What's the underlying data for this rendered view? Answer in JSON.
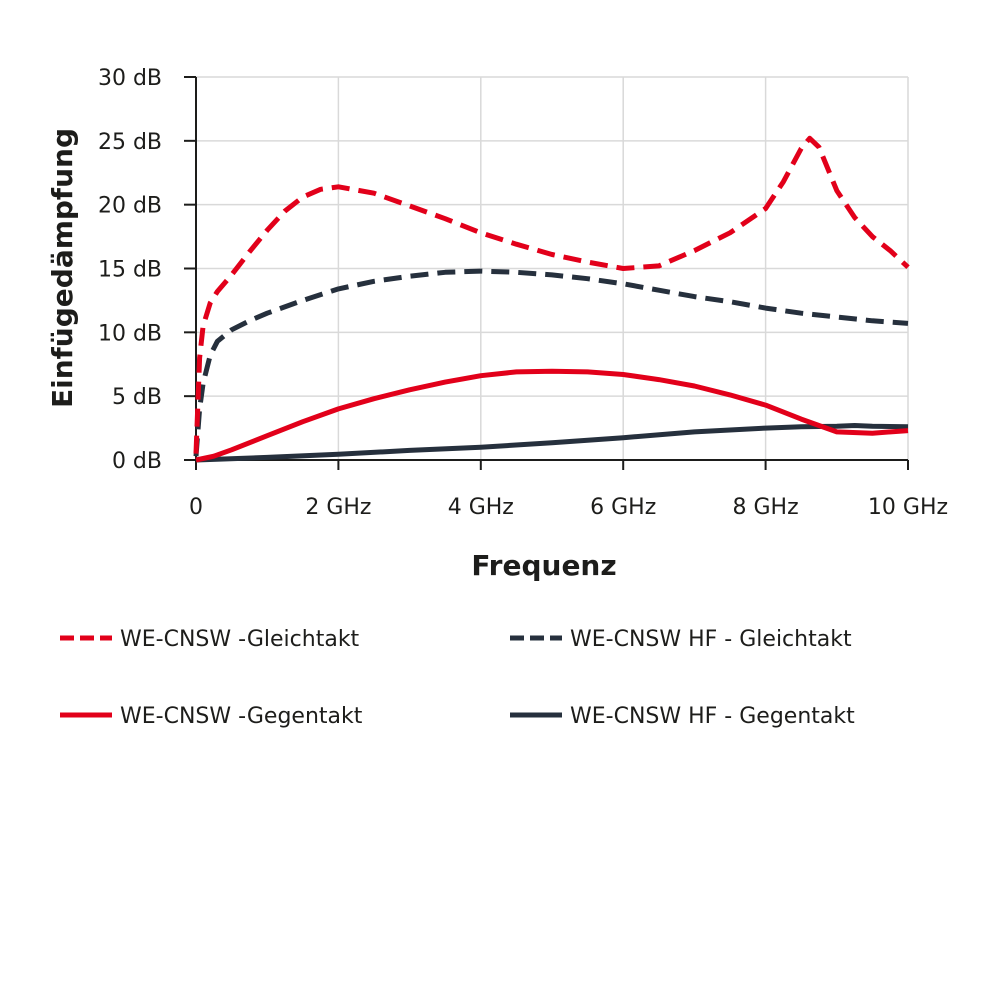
{
  "chart_data": {
    "type": "line",
    "title": "",
    "xlabel": "Frequenz",
    "ylabel": "Einfügedämpfung",
    "xlim": [
      0,
      10
    ],
    "ylim": [
      0,
      30
    ],
    "x_unit": "GHz",
    "y_unit": "dB",
    "x_ticks": [
      0,
      2,
      4,
      6,
      8,
      10
    ],
    "x_tick_labels": [
      "0",
      "2 GHz",
      "4 GHz",
      "6 GHz",
      "8 GHz",
      "10 GHz"
    ],
    "y_ticks": [
      0,
      5,
      10,
      15,
      20,
      25,
      30
    ],
    "y_tick_labels": [
      "0 dB",
      "5 dB",
      "10 dB",
      "15 dB",
      "20 dB",
      "25 dB",
      "30 dB"
    ],
    "grid": true,
    "legend_position": "bottom",
    "series": [
      {
        "name": "WE-CNSW -Gleichtakt",
        "color": "#e2001a",
        "dash": true,
        "x": [
          0,
          0.05,
          0.1,
          0.2,
          0.3,
          0.5,
          0.75,
          1.0,
          1.25,
          1.5,
          1.75,
          2.0,
          2.5,
          3.0,
          3.5,
          4.0,
          4.5,
          5.0,
          5.5,
          6.0,
          6.5,
          7.0,
          7.5,
          8.0,
          8.25,
          8.5,
          8.62,
          8.75,
          9.0,
          9.25,
          9.5,
          9.75,
          10.0
        ],
        "y": [
          0.5,
          8.0,
          10.5,
          12.3,
          13.2,
          14.5,
          16.3,
          18.0,
          19.5,
          20.6,
          21.2,
          21.4,
          20.9,
          19.9,
          18.9,
          17.8,
          16.9,
          16.1,
          15.5,
          15.0,
          15.2,
          16.4,
          17.8,
          19.7,
          21.8,
          24.4,
          25.2,
          24.5,
          21.1,
          19.0,
          17.5,
          16.4,
          15.1
        ]
      },
      {
        "name": "WE-CNSW HF - Gleichtakt",
        "color": "#26303d",
        "dash": true,
        "x": [
          0,
          0.05,
          0.1,
          0.2,
          0.3,
          0.5,
          0.75,
          1.0,
          1.5,
          2.0,
          2.5,
          3.0,
          3.5,
          4.0,
          4.5,
          5.0,
          5.5,
          6.0,
          6.5,
          7.0,
          7.5,
          8.0,
          8.5,
          9.0,
          9.5,
          10.0
        ],
        "y": [
          0.3,
          4.0,
          6.0,
          8.2,
          9.3,
          10.2,
          10.9,
          11.5,
          12.5,
          13.4,
          14.0,
          14.4,
          14.7,
          14.8,
          14.7,
          14.5,
          14.2,
          13.8,
          13.3,
          12.8,
          12.4,
          11.9,
          11.5,
          11.2,
          10.9,
          10.7
        ]
      },
      {
        "name": "WE-CNSW -Gegentakt",
        "color": "#e2001a",
        "dash": false,
        "x": [
          0,
          0.25,
          0.5,
          1.0,
          1.5,
          2.0,
          2.5,
          3.0,
          3.5,
          4.0,
          4.5,
          5.0,
          5.5,
          6.0,
          6.5,
          7.0,
          7.5,
          8.0,
          8.5,
          9.0,
          9.5,
          10.0
        ],
        "y": [
          0,
          0.3,
          0.8,
          1.9,
          3.0,
          4.0,
          4.8,
          5.5,
          6.1,
          6.6,
          6.9,
          6.95,
          6.9,
          6.7,
          6.3,
          5.8,
          5.1,
          4.3,
          3.2,
          2.2,
          2.1,
          2.3
        ]
      },
      {
        "name": "WE-CNSW HF - Gegentakt",
        "color": "#26303d",
        "dash": false,
        "x": [
          0,
          1.0,
          2.0,
          3.0,
          4.0,
          5.0,
          6.0,
          7.0,
          8.0,
          8.5,
          9.0,
          9.25,
          9.5,
          10.0
        ],
        "y": [
          0,
          0.2,
          0.45,
          0.75,
          1.0,
          1.35,
          1.75,
          2.2,
          2.5,
          2.6,
          2.65,
          2.7,
          2.65,
          2.6
        ]
      }
    ]
  }
}
